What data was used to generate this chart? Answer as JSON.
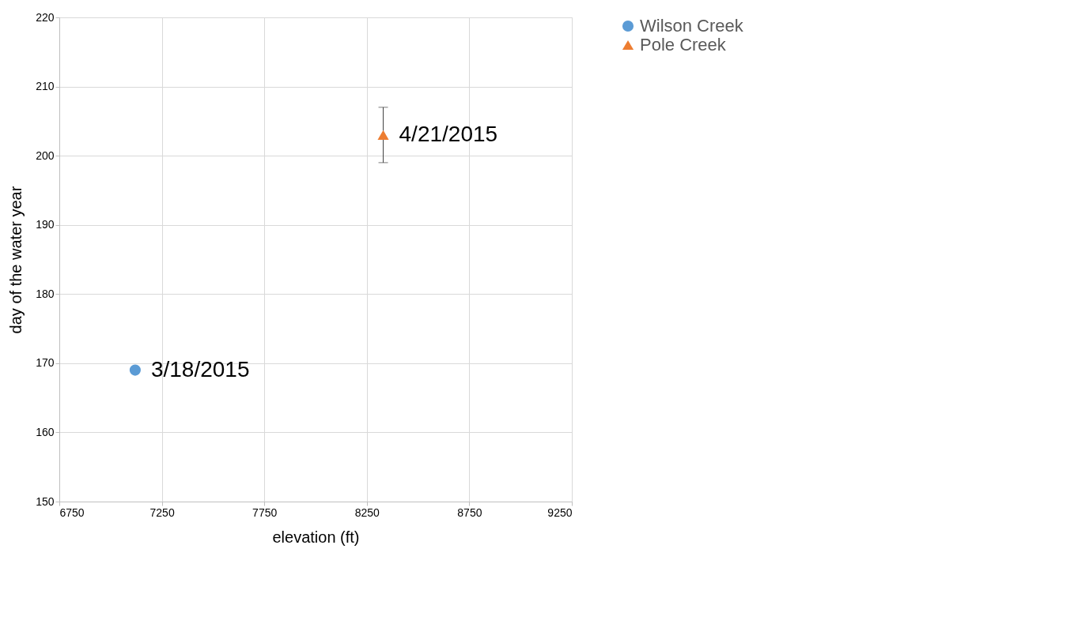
{
  "chart_data": {
    "type": "scatter",
    "xlabel": "elevation (ft)",
    "ylabel": "day of the water year",
    "series": [
      {
        "name": "Wilson Creek",
        "color": "#5b9bd5",
        "marker": "circle",
        "x": [
          7120
        ],
        "values": [
          169
        ]
      },
      {
        "name": "Pole Creek",
        "color": "#ed7d31",
        "marker": "triangle",
        "x": [
          8330
        ],
        "values": [
          203
        ],
        "errors": [
          4
        ]
      }
    ],
    "annotations": [
      {
        "text": "3/18/2015",
        "x": 7120,
        "y": 169
      },
      {
        "text": "4/21/2015",
        "x": 8330,
        "y": 203
      }
    ],
    "xlim": [
      6750,
      9250
    ],
    "xticks": [
      6750,
      7250,
      7750,
      8250,
      8750,
      9250
    ],
    "ylim": [
      150,
      220
    ],
    "yticks": [
      150,
      160,
      170,
      180,
      190,
      200,
      210,
      220
    ],
    "grid": true,
    "legend": "right"
  }
}
